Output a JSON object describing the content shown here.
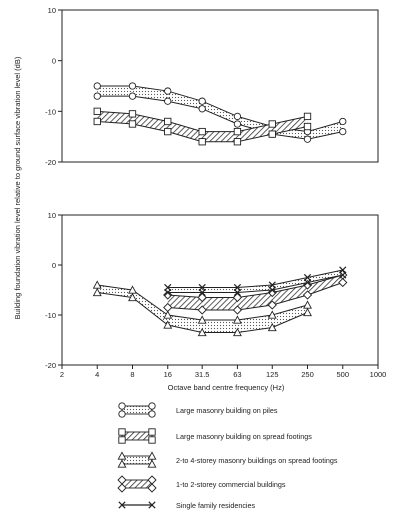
{
  "chart_data": {
    "type": "line",
    "x_scale": "log2",
    "xlabel": "Octave band centre frequency (Hz)",
    "ylabel": "Building foundation vibration level relative to ground surface vibration level (dB)",
    "x_ticks": [
      "2",
      "4",
      "8",
      "16",
      "31.5",
      "63",
      "125",
      "250",
      "500",
      "1000"
    ],
    "x_tick_values": [
      2,
      4,
      8,
      16,
      31.5,
      63,
      125,
      250,
      500,
      1000
    ],
    "grid": false,
    "legend_position": "bottom",
    "panels": [
      {
        "id": "top",
        "ylim": [
          -20,
          10
        ],
        "y_ticks": [
          "10",
          "0",
          "-10",
          "-20"
        ],
        "y_tick_values": [
          10,
          0,
          -10,
          -20
        ],
        "bands": [
          {
            "name": "Large masonry building on piles",
            "marker": "circle",
            "fill": "stipple",
            "x": [
              4,
              8,
              16,
              31.5,
              63,
              125,
              250,
              500
            ],
            "upper": [
              -5,
              -5,
              -6,
              -8,
              -11,
              -13,
              -14,
              -12
            ],
            "lower": [
              -7,
              -7,
              -8,
              -9.5,
              -12.5,
              -14.5,
              -15.5,
              -14
            ]
          },
          {
            "name": "Large masonry building on spread footings",
            "marker": "square",
            "fill": "hatch",
            "x": [
              4,
              8,
              16,
              31.5,
              63,
              125,
              250
            ],
            "upper": [
              -10,
              -10.5,
              -12,
              -14,
              -14,
              -12.5,
              -11
            ],
            "lower": [
              -12,
              -12.5,
              -14,
              -16,
              -16,
              -14.5,
              -13
            ]
          }
        ]
      },
      {
        "id": "bottom",
        "ylim": [
          -20,
          10
        ],
        "y_ticks": [
          "10",
          "0",
          "-10",
          "-20"
        ],
        "y_tick_values": [
          10,
          0,
          -10,
          -20
        ],
        "bands": [
          {
            "name": "2-to 4-storey masonry buildings on spread footings",
            "marker": "triangle",
            "fill": "stipple",
            "x": [
              4,
              8,
              16,
              31.5,
              63,
              125,
              250
            ],
            "upper": [
              -4,
              -5,
              -10,
              -11,
              -11,
              -10,
              -8
            ],
            "lower": [
              -5.5,
              -6.5,
              -12,
              -13.5,
              -13.5,
              -12.5,
              -9.5
            ]
          },
          {
            "name": "1-to 2-storey commercial buildings",
            "marker": "diamond",
            "fill": "hatch",
            "x": [
              16,
              31.5,
              63,
              125,
              250,
              500
            ],
            "upper": [
              -6,
              -6.5,
              -6.5,
              -5.5,
              -4,
              -2
            ],
            "lower": [
              -8.5,
              -9,
              -9,
              -8,
              -6,
              -3.5
            ]
          },
          {
            "name": "Single family residencies",
            "marker": "x",
            "fill": "stipple",
            "x": [
              16,
              31.5,
              63,
              125,
              250,
              500
            ],
            "upper": [
              -4.5,
              -4.5,
              -4.5,
              -4,
              -2.5,
              -1
            ],
            "lower": [
              -5.5,
              -5.5,
              -5.5,
              -5,
              -3.5,
              -2
            ]
          }
        ]
      }
    ]
  }
}
